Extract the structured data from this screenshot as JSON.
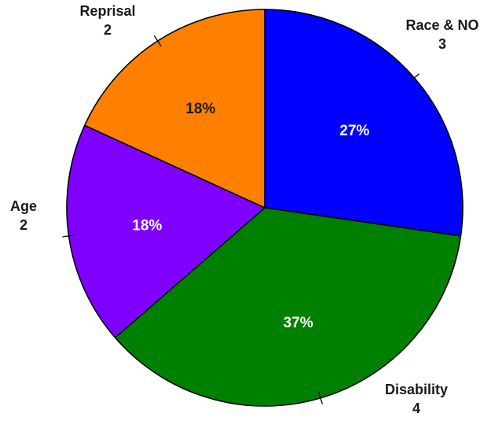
{
  "chart_data": {
    "type": "pie",
    "title": "",
    "slices": [
      {
        "label": "Race & NO",
        "value": 3,
        "percent_label": "27%",
        "color": "#0000FF",
        "percent_color": "#ffffff"
      },
      {
        "label": "Disability",
        "value": 4,
        "percent_label": "37%",
        "color": "#008000",
        "percent_color": "#ffffff"
      },
      {
        "label": "Age",
        "value": 2,
        "percent_label": "18%",
        "color": "#8000FF",
        "percent_color": "#ffffff"
      },
      {
        "label": "Reprisal",
        "value": 2,
        "percent_label": "18%",
        "color": "#FF8000",
        "percent_color": "#1a1a1a"
      }
    ],
    "start_angle": "12 o'clock",
    "direction": "clockwise",
    "legend": "none"
  }
}
